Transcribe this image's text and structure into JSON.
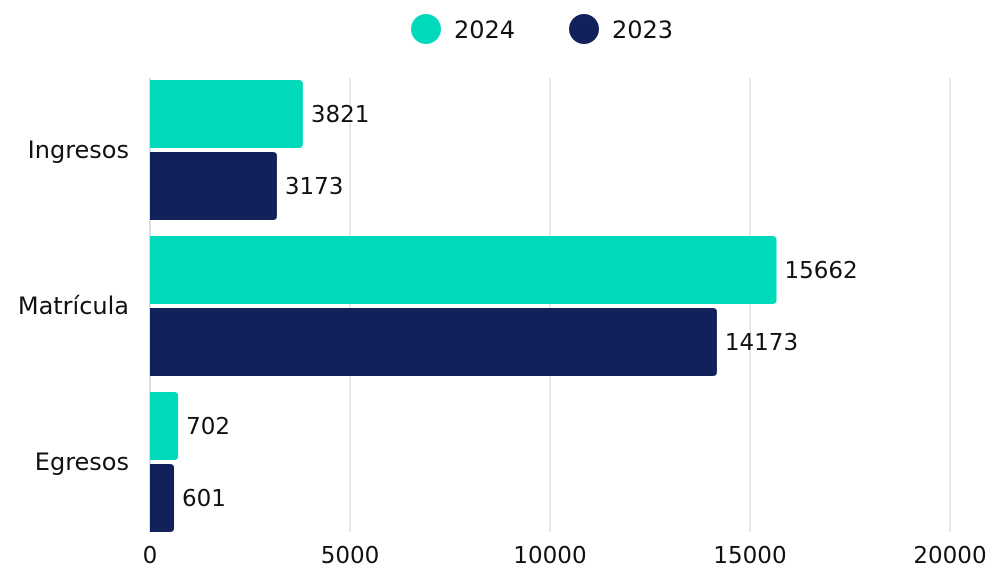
{
  "chart_data": {
    "type": "bar",
    "orientation": "horizontal",
    "categories": [
      "Ingresos",
      "Matrícula",
      "Egresos"
    ],
    "series": [
      {
        "name": "2024",
        "color": "#00D9BA",
        "values": [
          3821,
          15662,
          702
        ]
      },
      {
        "name": "2023",
        "color": "#13215A",
        "values": [
          3173,
          14173,
          601
        ]
      }
    ],
    "xlim": [
      0,
      20000
    ],
    "xticks": [
      0,
      5000,
      10000,
      15000,
      20000
    ],
    "grid": true,
    "legend_position": "top-center",
    "title": "",
    "xlabel": "",
    "ylabel": ""
  }
}
